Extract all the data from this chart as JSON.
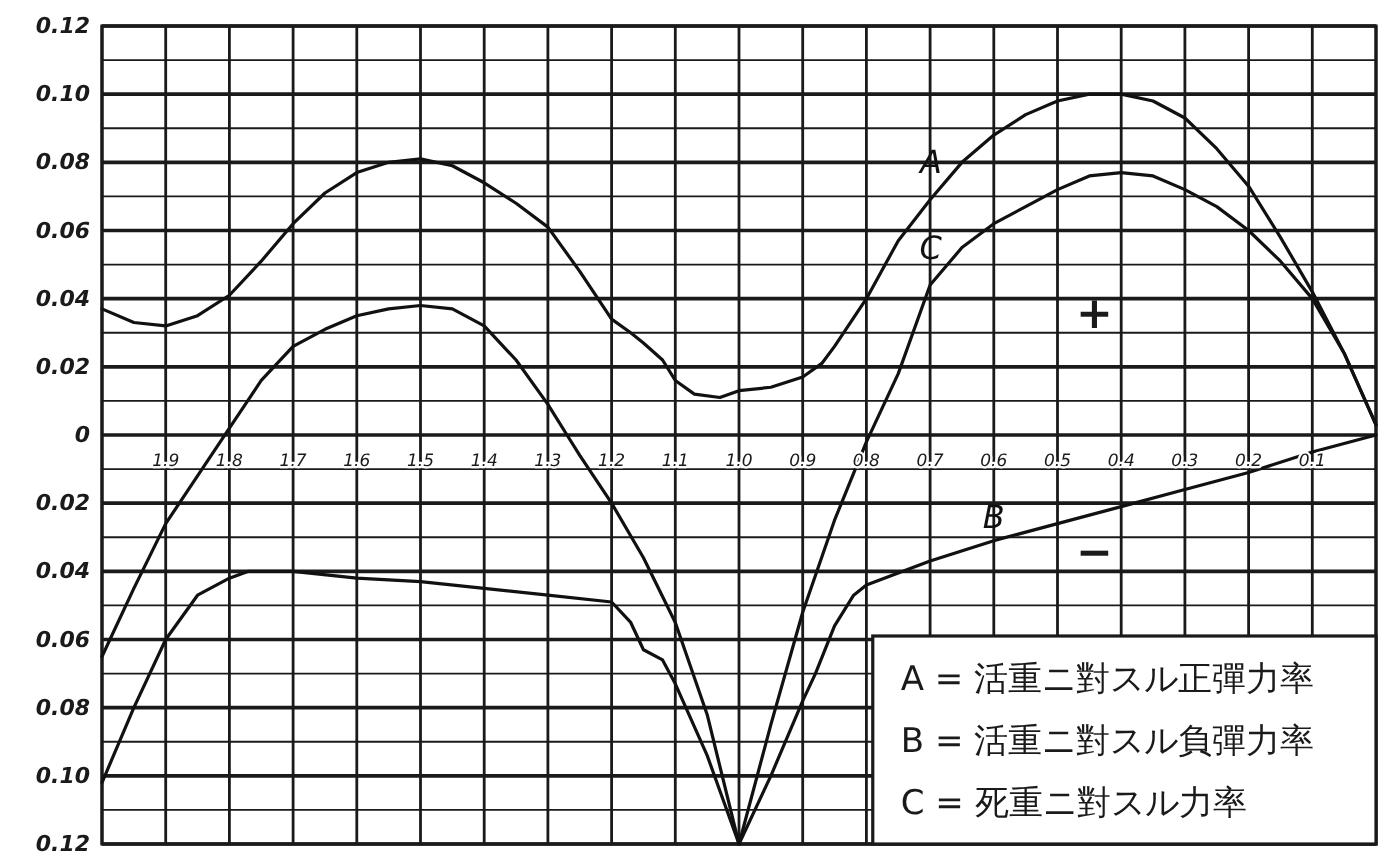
{
  "chart_data": {
    "type": "line",
    "xlim": [
      2.0,
      0
    ],
    "ylim": [
      -0.12,
      0.12
    ],
    "xticks": [
      {
        "value": 2.0,
        "label": null
      },
      1.9,
      1.8,
      1.7,
      1.6,
      1.5,
      1.4,
      1.3,
      1.2,
      1.1,
      {
        "value": 1.0,
        "label": "1.0"
      },
      0.9,
      0.8,
      0.7,
      0.6,
      0.5,
      0.4,
      0.3,
      0.2,
      0.1,
      {
        "value": 0,
        "label": null
      }
    ],
    "yticks": [
      {
        "value": 0.12,
        "label": "0.12"
      },
      {
        "value": 0.11,
        "label": null
      },
      {
        "value": 0.1,
        "label": "0.10"
      },
      {
        "value": 0.09,
        "label": null
      },
      {
        "value": 0.08,
        "label": "0.08"
      },
      {
        "value": 0.07,
        "label": null
      },
      {
        "value": 0.06,
        "label": "0.06"
      },
      {
        "value": 0.05,
        "label": null
      },
      {
        "value": 0.04,
        "label": "0.04"
      },
      {
        "value": 0.03,
        "label": null
      },
      {
        "value": 0.02,
        "label": "0.02"
      },
      {
        "value": 0.01,
        "label": null
      },
      {
        "value": 0,
        "label": "0"
      },
      {
        "value": -0.01,
        "label": null
      },
      {
        "value": -0.02,
        "label": "0.02"
      },
      {
        "value": -0.03,
        "label": null
      },
      {
        "value": -0.04,
        "label": "0.04"
      },
      {
        "value": -0.05,
        "label": null
      },
      {
        "value": -0.06,
        "label": "0.06"
      },
      {
        "value": -0.07,
        "label": null
      },
      {
        "value": -0.08,
        "label": "0.08"
      },
      {
        "value": -0.09,
        "label": null
      },
      {
        "value": -0.1,
        "label": "0.10"
      },
      {
        "value": -0.11,
        "label": null
      },
      {
        "value": -0.12,
        "label": "0.12"
      }
    ],
    "grid": true,
    "line_style": "solid",
    "series": [
      {
        "name": "A",
        "color": "#111111",
        "x": [
          2.0,
          1.95,
          1.9,
          1.85,
          1.8,
          1.75,
          1.7,
          1.65,
          1.6,
          1.55,
          1.5,
          1.45,
          1.4,
          1.35,
          1.3,
          1.25,
          1.2,
          1.17,
          1.15,
          1.12,
          1.1,
          1.07,
          1.03,
          1.0,
          0.95,
          0.9,
          0.87,
          0.85,
          0.8,
          0.75,
          0.7,
          0.65,
          0.6,
          0.55,
          0.5,
          0.45,
          0.4,
          0.35,
          0.3,
          0.25,
          0.2,
          0.15,
          0.1,
          0.05,
          0.0
        ],
        "values": [
          0.037,
          0.033,
          0.032,
          0.035,
          0.041,
          0.051,
          0.062,
          0.071,
          0.077,
          0.08,
          0.081,
          0.079,
          0.074,
          0.068,
          0.061,
          0.048,
          0.034,
          0.03,
          0.027,
          0.022,
          0.016,
          0.012,
          0.011,
          0.013,
          0.014,
          0.017,
          0.021,
          0.026,
          0.04,
          0.057,
          0.069,
          0.08,
          0.088,
          0.094,
          0.098,
          0.1,
          0.1,
          0.098,
          0.093,
          0.084,
          0.073,
          0.058,
          0.042,
          0.024,
          0.003
        ]
      },
      {
        "name": "B",
        "color": "#111111",
        "x": [
          2.0,
          1.95,
          1.9,
          1.85,
          1.8,
          1.77,
          1.7,
          1.6,
          1.5,
          1.4,
          1.3,
          1.2,
          1.17,
          1.15,
          1.12,
          1.1,
          1.05,
          1.0,
          0.95,
          0.9,
          0.88,
          0.85,
          0.82,
          0.8,
          0.7,
          0.6,
          0.5,
          0.4,
          0.3,
          0.2,
          0.1,
          0.0
        ],
        "values": [
          -0.102,
          -0.08,
          -0.06,
          -0.047,
          -0.042,
          -0.04,
          -0.04,
          -0.042,
          -0.043,
          -0.045,
          -0.047,
          -0.049,
          -0.055,
          -0.063,
          -0.066,
          -0.073,
          -0.094,
          -0.12,
          -0.1,
          -0.078,
          -0.07,
          -0.056,
          -0.047,
          -0.044,
          -0.037,
          -0.031,
          -0.026,
          -0.021,
          -0.016,
          -0.011,
          -0.005,
          0.0
        ]
      },
      {
        "name": "C",
        "color": "#111111",
        "x": [
          2.0,
          1.95,
          1.9,
          1.85,
          1.8,
          1.75,
          1.7,
          1.65,
          1.6,
          1.55,
          1.5,
          1.45,
          1.4,
          1.35,
          1.3,
          1.27,
          1.25,
          1.2,
          1.15,
          1.1,
          1.05,
          1.0,
          0.95,
          0.9,
          0.85,
          0.8,
          0.75,
          0.7,
          0.65,
          0.6,
          0.55,
          0.5,
          0.45,
          0.4,
          0.35,
          0.3,
          0.25,
          0.2,
          0.15,
          0.1,
          0.05,
          0.0
        ],
        "values": [
          -0.065,
          -0.045,
          -0.026,
          -0.012,
          0.002,
          0.016,
          0.026,
          0.031,
          0.035,
          0.037,
          0.038,
          0.037,
          0.032,
          0.022,
          0.009,
          0.0,
          -0.006,
          -0.02,
          -0.036,
          -0.055,
          -0.082,
          -0.12,
          -0.085,
          -0.052,
          -0.025,
          -0.002,
          0.018,
          0.044,
          0.055,
          0.062,
          0.067,
          0.072,
          0.076,
          0.077,
          0.076,
          0.072,
          0.067,
          0.06,
          0.051,
          0.04,
          0.024,
          0.003
        ]
      }
    ],
    "annotations": [
      "+",
      "−",
      "A = 活重ニ對スル正彈力率",
      "B = 活重ニ對スル負彈力率",
      "C = 死重ニ對スル力率"
    ]
  }
}
